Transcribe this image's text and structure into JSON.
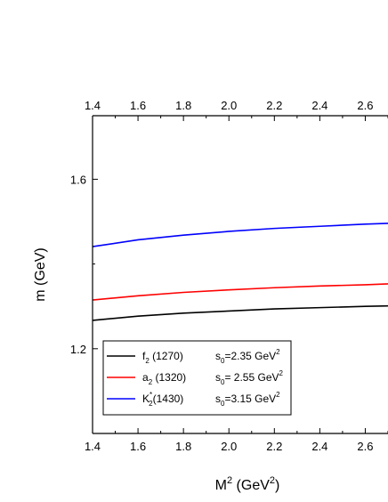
{
  "chart_data": {
    "type": "line",
    "xlabel": "M",
    "xlabel_sup": "2",
    "xlabel_unit_open": " (GeV",
    "xlabel_unit_sup": "2",
    "xlabel_unit_close": ")",
    "ylabel": "m (GeV)",
    "xlim": [
      1.4,
      2.7
    ],
    "ylim": [
      1.0,
      1.75
    ],
    "x_ticks": [
      1.4,
      1.6,
      1.8,
      2.0,
      2.2,
      2.4,
      2.6
    ],
    "x_tick_labels": [
      "1.4",
      "1.6",
      "1.8",
      "2.0",
      "2.2",
      "2.4",
      "2.6"
    ],
    "y_ticks": [
      1.2,
      1.6
    ],
    "y_tick_labels": [
      "1.2",
      "1.6"
    ],
    "top_axis_ticks_mirrored": true,
    "grid": false,
    "legend_position": "bottom-left",
    "series": [
      {
        "color": "#000000",
        "x": [
          1.4,
          1.6,
          1.8,
          2.0,
          2.2,
          2.4,
          2.6,
          2.7
        ],
        "y": [
          1.267,
          1.277,
          1.284,
          1.289,
          1.294,
          1.297,
          1.3,
          1.301
        ],
        "legend": {
          "name_base": "f",
          "name_sub": "2",
          "name_sup": "",
          "name_tail": " (1270)",
          "param_base": "s",
          "param_sub": "0",
          "param_value": "=2.35 GeV",
          "param_sup": "2"
        }
      },
      {
        "color": "#ff0000",
        "x": [
          1.4,
          1.6,
          1.8,
          2.0,
          2.2,
          2.4,
          2.6,
          2.7
        ],
        "y": [
          1.315,
          1.325,
          1.333,
          1.339,
          1.344,
          1.348,
          1.351,
          1.353
        ],
        "legend": {
          "name_base": "a",
          "name_sub": "2",
          "name_sup": "",
          "name_tail": " (1320)",
          "param_base": "s",
          "param_sub": "0",
          "param_value": "= 2.55 GeV",
          "param_sup": "2"
        }
      },
      {
        "color": "#0000ff",
        "x": [
          1.4,
          1.6,
          1.8,
          2.0,
          2.2,
          2.4,
          2.6,
          2.7
        ],
        "y": [
          1.441,
          1.457,
          1.468,
          1.477,
          1.484,
          1.489,
          1.494,
          1.496
        ],
        "legend": {
          "name_base": "K",
          "name_sub": "2",
          "name_sup": "*",
          "name_tail": "(1430)",
          "param_base": "s",
          "param_sub": "0",
          "param_value": "=3.15 GeV",
          "param_sup": "2"
        }
      }
    ]
  }
}
